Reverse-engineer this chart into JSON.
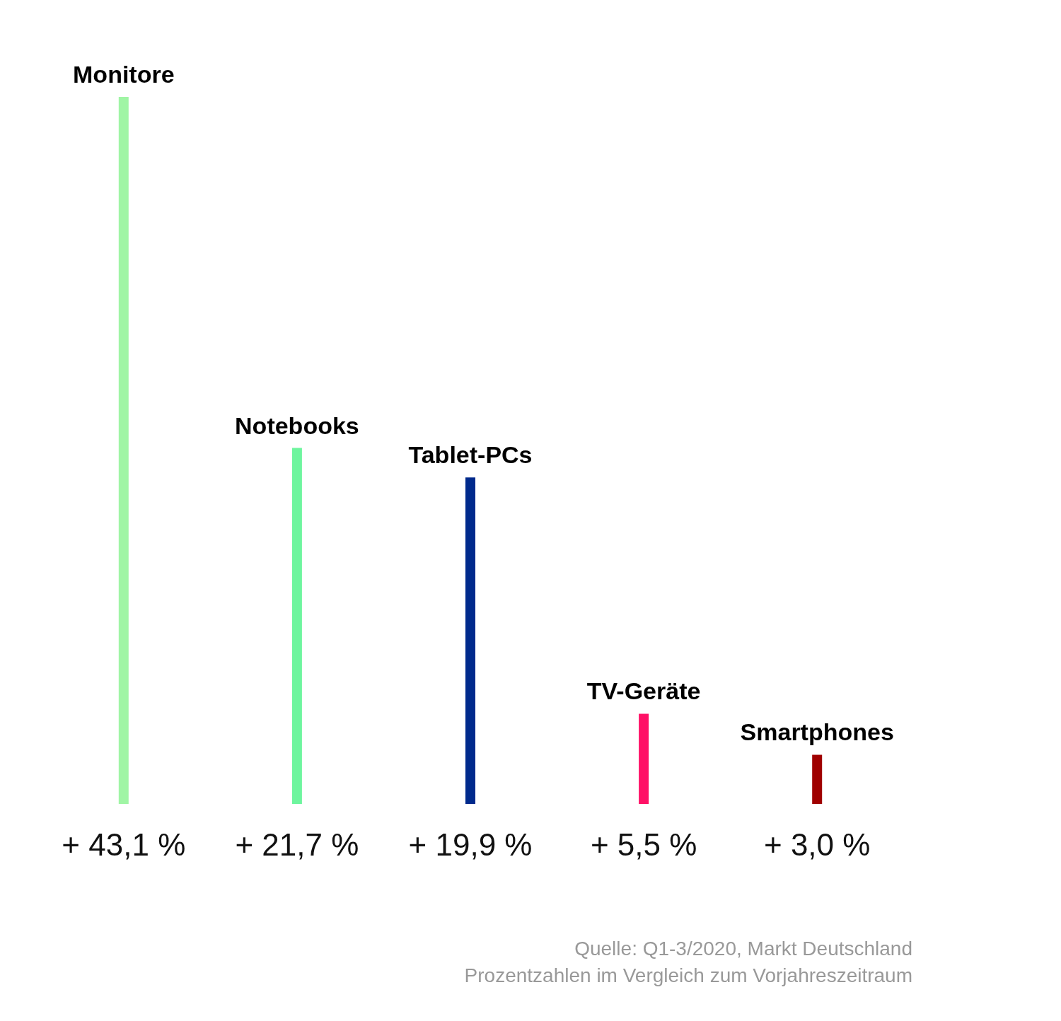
{
  "chart_data": {
    "type": "bar",
    "categories": [
      "Monitore",
      "Notebooks",
      "Tablet-PCs",
      "TV-Geräte",
      "Smartphones"
    ],
    "values": [
      43.1,
      21.7,
      19.9,
      5.5,
      3.0
    ],
    "value_labels": [
      "+ 43,1 %",
      "+ 21,7 %",
      "+ 19,9 %",
      "+ 5,5 %",
      "+ 3,0 %"
    ],
    "colors": [
      "#a0f5a5",
      "#6ef59e",
      "#002a8c",
      "#ff1166",
      "#a00000"
    ],
    "annotations": [
      "Quelle: Q1-3/2020, Markt Deutschland",
      "Prozentzahlen im Vergleich zum Vorjahreszeitraum"
    ],
    "data_labels": false
  }
}
